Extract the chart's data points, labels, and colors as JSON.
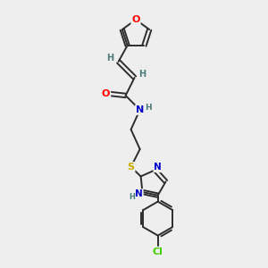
{
  "bg_color": "#eeeeee",
  "bond_color": "#2d2d2d",
  "atom_colors": {
    "O": "#ff0000",
    "N": "#0000cd",
    "S": "#ccaa00",
    "Cl": "#44cc00",
    "C": "#2d2d2d",
    "H": "#4a7a7a"
  },
  "font_size": 8,
  "lw": 1.4
}
